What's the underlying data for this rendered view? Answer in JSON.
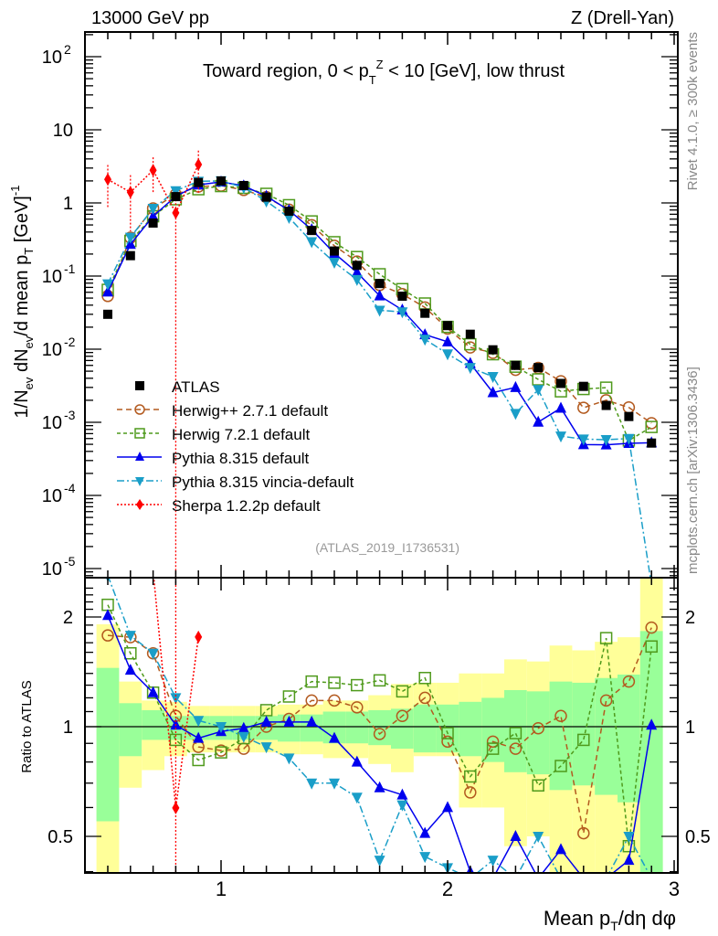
{
  "header": {
    "left": "13000 GeV pp",
    "right": "Z (Drell-Yan)"
  },
  "side_text": {
    "top": "Rivet 4.1.0, ≥ 300k events",
    "bottom": "mcplots.cern.ch [arXiv:1306.3436]"
  },
  "chart_data": {
    "type": "line",
    "title": {
      "pre": "Toward region, 0 < p",
      "sub": "T",
      "sup": "Z",
      "post": " < 10 [GeV], low thrust"
    },
    "analysis_tag": "(ATLAS_2019_I1736531)",
    "xlabel": {
      "pre": "Mean p",
      "sub": "T",
      "post": "/dη dφ"
    },
    "ylabel": {
      "a": "1/N",
      "a_sub": "ev",
      "b": " dN",
      "b_sub": "ev",
      "c": "/d mean p",
      "c_sub": "T",
      "d": " [GeV]",
      "d_sup": "-1"
    },
    "ratio_ylabel": "Ratio to ATLAS",
    "xlim": [
      0.4,
      3.0
    ],
    "ylim": [
      7e-06,
      220
    ],
    "yscale": "log",
    "ratio_ylim": [
      0.33,
      2.5
    ],
    "xticks": [
      "1",
      "2",
      "3"
    ],
    "xtick_values": [
      1,
      2,
      3
    ],
    "yticks": [
      {
        "v": 100,
        "base": "10",
        "exp": "2"
      },
      {
        "v": 10,
        "base": "10",
        "exp": ""
      },
      {
        "v": 1,
        "base": "1",
        "exp": ""
      },
      {
        "v": 0.1,
        "base": "10",
        "exp": "-1"
      },
      {
        "v": 0.01,
        "base": "10",
        "exp": "-2"
      },
      {
        "v": 0.001,
        "base": "10",
        "exp": "-3"
      },
      {
        "v": 0.0001,
        "base": "10",
        "exp": "-4"
      },
      {
        "v": 1e-05,
        "base": "10",
        "exp": "-5"
      }
    ],
    "ratio_yticks": [
      {
        "v": 2,
        "label": "2"
      },
      {
        "v": 1,
        "label": "1"
      },
      {
        "v": 0.5,
        "label": "0.5"
      }
    ],
    "legend_position": "center-left",
    "x": [
      0.5,
      0.6,
      0.7,
      0.8,
      0.9,
      1.0,
      1.1,
      1.2,
      1.3,
      1.4,
      1.5,
      1.6,
      1.7,
      1.8,
      1.9,
      2.0,
      2.1,
      2.2,
      2.3,
      2.4,
      2.5,
      2.6,
      2.7,
      2.8,
      2.9
    ],
    "data": {
      "name": "ATLAS",
      "color": "#000000",
      "values": [
        0.03,
        0.19,
        0.53,
        1.22,
        1.9,
        2.0,
        1.73,
        1.2,
        0.77,
        0.42,
        0.22,
        0.14,
        0.079,
        0.053,
        0.031,
        0.021,
        0.016,
        0.0098,
        0.006,
        0.0056,
        0.0034,
        0.0031,
        0.0017,
        0.0012,
        0.00052
      ]
    },
    "bands": {
      "stat_color": "#99ff99",
      "total_color": "#ffff99",
      "stat": [
        [
          0.55,
          1.45
        ],
        [
          0.83,
          1.16
        ],
        [
          0.92,
          1.11
        ],
        [
          0.92,
          1.07
        ],
        [
          0.92,
          1.07
        ],
        [
          0.92,
          1.07
        ],
        [
          0.92,
          1.07
        ],
        [
          0.92,
          1.07
        ],
        [
          0.91,
          1.08
        ],
        [
          0.91,
          1.08
        ],
        [
          0.9,
          1.1
        ],
        [
          0.9,
          1.1
        ],
        [
          0.89,
          1.11
        ],
        [
          0.87,
          1.12
        ],
        [
          0.85,
          1.15
        ],
        [
          0.85,
          1.15
        ],
        [
          0.83,
          1.17
        ],
        [
          0.8,
          1.2
        ],
        [
          0.75,
          1.26
        ],
        [
          0.74,
          1.25
        ],
        [
          0.67,
          1.33
        ],
        [
          0.69,
          1.32
        ],
        [
          0.65,
          1.36
        ],
        [
          0.62,
          1.39
        ],
        [
          0.3,
          1.83
        ]
      ],
      "total": [
        [
          0.3,
          1.91
        ],
        [
          0.68,
          1.33
        ],
        [
          0.76,
          1.18
        ],
        [
          0.83,
          1.17
        ],
        [
          0.85,
          1.14
        ],
        [
          0.85,
          1.14
        ],
        [
          0.85,
          1.14
        ],
        [
          0.85,
          1.14
        ],
        [
          0.84,
          1.15
        ],
        [
          0.84,
          1.15
        ],
        [
          0.82,
          1.18
        ],
        [
          0.82,
          1.18
        ],
        [
          0.79,
          1.22
        ],
        [
          0.75,
          1.31
        ],
        [
          0.83,
          1.32
        ],
        [
          0.83,
          1.32
        ],
        [
          0.6,
          1.4
        ],
        [
          0.6,
          1.4
        ],
        [
          0.47,
          1.53
        ],
        [
          0.5,
          1.51
        ],
        [
          0.3,
          1.67
        ],
        [
          0.3,
          1.62
        ],
        [
          0.3,
          1.71
        ],
        [
          0.3,
          1.76
        ],
        [
          0.3,
          2.6
        ]
      ]
    },
    "series": [
      {
        "name": "Herwig++ 2.7.1 default",
        "color": "#b35a1f",
        "marker": "open-circle",
        "dash": "6,4",
        "ratio": [
          1.78,
          1.76,
          1.59,
          1.07,
          0.88,
          0.86,
          0.87,
          1.0,
          1.05,
          1.18,
          1.18,
          1.13,
          0.955,
          1.07,
          1.2,
          0.91,
          0.66,
          0.91,
          0.87,
          0.99,
          1.07,
          0.51,
          1.18,
          1.33,
          1.87
        ]
      },
      {
        "name": "Herwig 7.2.1 default",
        "color": "#4f9a1c",
        "marker": "open-square",
        "dash": "4,3",
        "ratio": [
          2.16,
          1.59,
          1.24,
          0.92,
          0.81,
          0.85,
          0.93,
          1.11,
          1.21,
          1.33,
          1.32,
          1.3,
          1.34,
          1.25,
          1.36,
          0.96,
          0.73,
          0.87,
          0.96,
          0.69,
          0.78,
          0.92,
          1.75,
          0.47,
          1.66
        ]
      },
      {
        "name": "Pythia 8.315 default",
        "color": "#0000ee",
        "marker": "triangle-up",
        "dash": "",
        "ratio": [
          2.02,
          1.43,
          1.24,
          1.01,
          0.93,
          0.97,
          0.99,
          1.03,
          1.03,
          1.03,
          0.93,
          0.8,
          0.68,
          0.65,
          0.51,
          0.6,
          0.4,
          0.26,
          0.5,
          0.18,
          0.46,
          0.16,
          0.29,
          0.43,
          1.01
        ]
      },
      {
        "name": "Pythia 8.315 vincia-default",
        "color": "#1a9ec8",
        "marker": "triangle-down",
        "dash": "8,3,2,3",
        "ratio": [
          2.6,
          1.78,
          1.59,
          1.2,
          1.04,
          1.0,
          0.94,
          0.88,
          0.82,
          0.7,
          0.7,
          0.64,
          0.43,
          0.61,
          0.44,
          0.41,
          0.35,
          0.43,
          0.22,
          0.5,
          0.19,
          0.19,
          0.34,
          0.5,
          0
        ]
      },
      {
        "name": "Sherpa 1.2.2p default",
        "color": "#ff0000",
        "marker": "diamond",
        "dash": "2,2",
        "x": [
          0.5,
          0.6,
          0.7,
          0.8,
          0.9
        ],
        "values": [
          2.1,
          1.4,
          2.8,
          0.73,
          3.35
        ],
        "err": [
          [
            0.87,
            3.3
          ],
          [
            0.41,
            2.4
          ],
          [
            1.33,
            4.2
          ],
          [
            0,
            1.4
          ],
          [
            1.3,
            5.2
          ]
        ]
      }
    ]
  }
}
